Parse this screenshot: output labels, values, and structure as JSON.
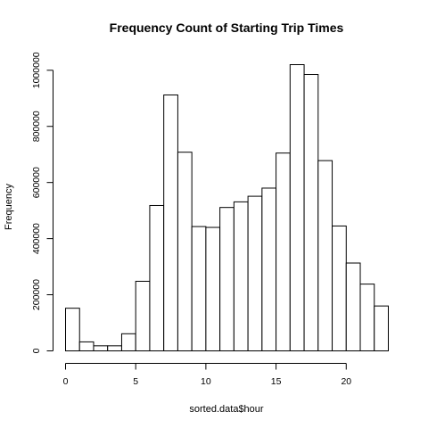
{
  "chart_data": {
    "type": "bar",
    "title": "Frequency Count of Starting Trip Times",
    "xlabel": "sorted.data$hour",
    "ylabel": "Frequency",
    "bin_edges": [
      0,
      1,
      2,
      3,
      4,
      5,
      6,
      7,
      8,
      9,
      10,
      11,
      12,
      13,
      14,
      15,
      16,
      17,
      18,
      19,
      20,
      21,
      22,
      23
    ],
    "values": [
      152000,
      32000,
      18000,
      18000,
      61000,
      248000,
      518000,
      912000,
      708000,
      443000,
      440000,
      511000,
      531000,
      551000,
      580000,
      705000,
      1020000,
      985000,
      678000,
      445000,
      313000,
      238000,
      160000
    ],
    "xlim": [
      0,
      23
    ],
    "ylim": [
      0,
      1020000
    ],
    "x_ticks": [
      0,
      5,
      10,
      15,
      20
    ],
    "y_ticks": [
      0,
      200000,
      400000,
      600000,
      800000,
      1000000
    ],
    "grid": false
  }
}
